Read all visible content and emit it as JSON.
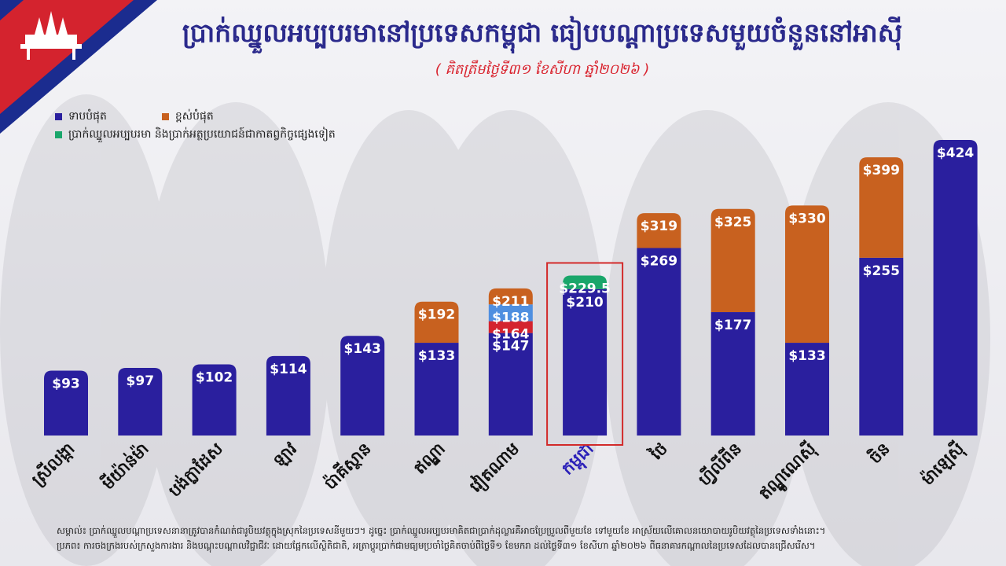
{
  "title": "ប្រាក់ឈ្នួលអប្បបរមានៅប្រទេសកម្ពុជា ធៀបបណ្ដាប្រទេសមួយចំនួននៅអាស៊ី",
  "subtitle": "( គិតត្រឹមថ្ងៃទី៣១ ខែសីហា ឆ្នាំ២០២៦ )",
  "legend": {
    "lowest": "ទាបបំផុត",
    "highest": "ខ្ពស់បំផុត",
    "benefits": "ប្រាក់ឈ្នួលអប្បបរមា និងប្រាក់អត្ថប្រយោជន៍ជាកាតព្វកិច្ចផ្សេងទៀត"
  },
  "notes": {
    "line1": "សម្គាល់៖ ប្រាក់ឈ្នួលបណ្ដាប្រទេសនានាត្រូវបានកំណត់ជារូបិយវត្ថុក្នុងស្រុកនៃប្រទេសនីមួយៗ។ ដូច្នេះ ប្រាក់ឈ្នួលអប្បបរមាគិតជាប្រាក់ដុល្លារគឺអាចប្រែប្រួលពីមួយខែ ទៅមួយខែ អាស្រ័យលើគោលនយោបាយរូបិយវត្ថុនៃប្រទេសទាំងនោះ។",
    "line2": "ប្រភព៖ ការចងក្រងរបស់ក្រសួងការងារ និងបណ្ដុះបណ្ដាលវិជ្ជាជីវៈ ដោយផ្អែកលើស្ថិតិជាតិ, អត្រាប្ដូរប្រាក់ជាមធ្យមប្រចាំថ្ងៃគិតចាប់ពីថ្ងៃទី១ ខែមករា ដល់ថ្ងៃទី៣១ ខែសីហា ឆ្នាំ២០២៦ ពីធនាគារកណ្ដាលនៃប្រទេសដែលបានជ្រើសរើស។"
  },
  "colors": {
    "lowest": "#2a1f9e",
    "highest": "#c8611f",
    "benefits": "#1aa66b",
    "red_segment": "#d4232e",
    "light_blue_segment": "#4f8fe0",
    "highlight_box": "#d22a2a",
    "title": "#2b2a8c",
    "cambodia_label": "#2a1fb8"
  },
  "chart_data": {
    "type": "bar",
    "stacked": true,
    "title": "ប្រាក់ឈ្នួលអប្បបរមានៅប្រទេសកម្ពុជា ធៀបបណ្ដាប្រទេសមួយចំនួននៅអាស៊ី",
    "subtitle": "( គិតត្រឹមថ្ងៃទី៣១ ខែសីហា ឆ្នាំ២០២៦ )",
    "unit": "USD",
    "ylim": [
      0,
      424
    ],
    "grid": false,
    "legend_position": "top-left",
    "categories": [
      "ស្រីលង្កា",
      "មីយ៉ាន់ម៉ា",
      "បង់ក្លាដែស",
      "ឡាវ",
      "ប៉ាគីស្ថាន",
      "ឥណ្ឌា",
      "វៀតណាម",
      "កម្ពុជា",
      "ថៃ",
      "ហ្វីលីពីន",
      "ឥណ្ឌូណេស៊ី",
      "ចិន",
      "ម៉ាឡេស៊ី"
    ],
    "highlight_category": "កម្ពុជា",
    "bars": [
      {
        "category": "ស្រីលង្កា",
        "segments": [
          {
            "kind": "lowest",
            "value": 93,
            "label": "$93"
          }
        ]
      },
      {
        "category": "មីយ៉ាន់ម៉ា",
        "segments": [
          {
            "kind": "lowest",
            "value": 97,
            "label": "$97"
          }
        ]
      },
      {
        "category": "បង់ក្លាដែស",
        "segments": [
          {
            "kind": "lowest",
            "value": 102,
            "label": "$102"
          }
        ]
      },
      {
        "category": "ឡាវ",
        "segments": [
          {
            "kind": "lowest",
            "value": 114,
            "label": "$114"
          }
        ]
      },
      {
        "category": "ប៉ាគីស្ថាន",
        "segments": [
          {
            "kind": "lowest",
            "value": 143,
            "label": "$143"
          }
        ]
      },
      {
        "category": "ឥណ្ឌា",
        "segments": [
          {
            "kind": "lowest",
            "value": 133,
            "label": "$133"
          },
          {
            "kind": "highest",
            "value": 192,
            "label": "$192"
          }
        ]
      },
      {
        "category": "វៀតណាម",
        "segments": [
          {
            "kind": "lowest",
            "value": 147,
            "label": "$147"
          },
          {
            "kind": "red_segment",
            "value": 164,
            "label": "$164"
          },
          {
            "kind": "light_blue_segment",
            "value": 188,
            "label": "$188"
          },
          {
            "kind": "highest",
            "value": 211,
            "label": "$211"
          }
        ]
      },
      {
        "category": "កម្ពុជា",
        "segments": [
          {
            "kind": "lowest",
            "value": 210,
            "label": "$210"
          },
          {
            "kind": "benefits",
            "value": 229.5,
            "label": "$229.5"
          }
        ]
      },
      {
        "category": "ថៃ",
        "segments": [
          {
            "kind": "lowest",
            "value": 269,
            "label": "$269"
          },
          {
            "kind": "highest",
            "value": 319,
            "label": "$319"
          }
        ]
      },
      {
        "category": "ហ្វីលីពីន",
        "segments": [
          {
            "kind": "lowest",
            "value": 177,
            "label": "$177"
          },
          {
            "kind": "highest",
            "value": 325,
            "label": "$325"
          }
        ]
      },
      {
        "category": "ឥណ្ឌូណេស៊ី",
        "segments": [
          {
            "kind": "lowest",
            "value": 133,
            "label": "$133"
          },
          {
            "kind": "highest",
            "value": 330,
            "label": "$330"
          }
        ]
      },
      {
        "category": "ចិន",
        "segments": [
          {
            "kind": "lowest",
            "value": 255,
            "label": "$255"
          },
          {
            "kind": "highest",
            "value": 399,
            "label": "$399"
          }
        ]
      },
      {
        "category": "ម៉ាឡេស៊ី",
        "segments": [
          {
            "kind": "lowest",
            "value": 424,
            "label": "$424"
          }
        ]
      }
    ]
  }
}
